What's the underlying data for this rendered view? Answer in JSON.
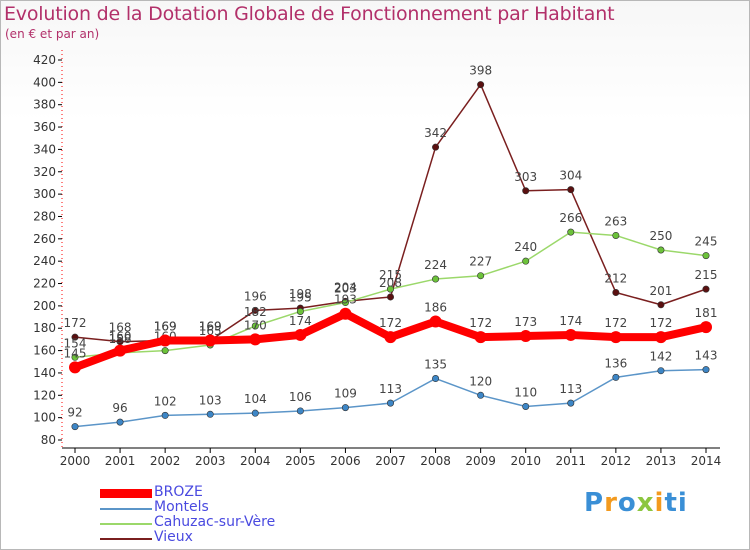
{
  "chart_data": {
    "type": "line",
    "title": "Evolution de la Dotation Globale de Fonctionnement par Habitant",
    "subtitle": "(en € et par an)",
    "xlabel": "",
    "ylabel": "",
    "ylim": [
      80,
      420
    ],
    "yticks": [
      "80",
      "100",
      "120",
      "140",
      "160",
      "180",
      "200",
      "220",
      "240",
      "260",
      "280",
      "300",
      "320",
      "340",
      "360",
      "380",
      "400",
      "420"
    ],
    "categories": [
      "2000",
      "2001",
      "2002",
      "2003",
      "2004",
      "2005",
      "2006",
      "2007",
      "2008",
      "2009",
      "2010",
      "2011",
      "2012",
      "2013",
      "2014"
    ],
    "grid": false,
    "legend_position": "bottom-left",
    "series": [
      {
        "name": "Vieux",
        "color": "#7a1f1f",
        "marker": "#5a1010",
        "width": 1.5,
        "values": [
          172,
          168,
          169,
          169,
          196,
          198,
          204,
          208,
          342,
          398,
          303,
          304,
          212,
          201,
          215
        ]
      },
      {
        "name": "Cahuzac-sur-Vère",
        "color": "#9bd86a",
        "marker": "#6cc23a",
        "width": 1.5,
        "values": [
          154,
          158,
          160,
          165,
          182,
          195,
          203,
          215,
          224,
          227,
          240,
          266,
          263,
          250,
          245
        ]
      },
      {
        "name": "Montels",
        "color": "#5b95c8",
        "marker": "#3d86c6",
        "width": 1.5,
        "values": [
          92,
          96,
          102,
          103,
          104,
          106,
          109,
          113,
          135,
          120,
          110,
          113,
          136,
          142,
          143
        ]
      },
      {
        "name": "BROZE",
        "color": "#ff0000",
        "marker": "#ff0000",
        "width": 8,
        "values": [
          145,
          160,
          169,
          169,
          170,
          174,
          193,
          172,
          186,
          172,
          173,
          174,
          172,
          172,
          181
        ]
      }
    ],
    "legend_order": [
      "BROZE",
      "Montels",
      "Cahuzac-sur-Vère",
      "Vieux"
    ]
  },
  "logo": {
    "letters": [
      "P",
      "r",
      "o",
      "x",
      "i",
      "ti"
    ]
  }
}
